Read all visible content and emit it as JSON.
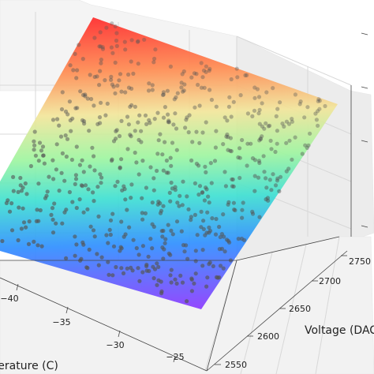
{
  "chart_data": {
    "type": "scatter",
    "projection": "3d",
    "surface": "fitted plane",
    "colormap": "rainbow",
    "xlabel": "Temperature (C)",
    "ylabel": "Voltage (DAC)",
    "zlabel": "",
    "x_ticks": [
      "−40",
      "−35",
      "−30",
      "−25"
    ],
    "y_ticks": [
      "2550",
      "2600",
      "2650",
      "2700",
      "2750"
    ],
    "xlim": [
      -45,
      -24
    ],
    "ylim": [
      2540,
      2780
    ],
    "grid": true,
    "point_color": "#555555",
    "point_count": 620
  }
}
